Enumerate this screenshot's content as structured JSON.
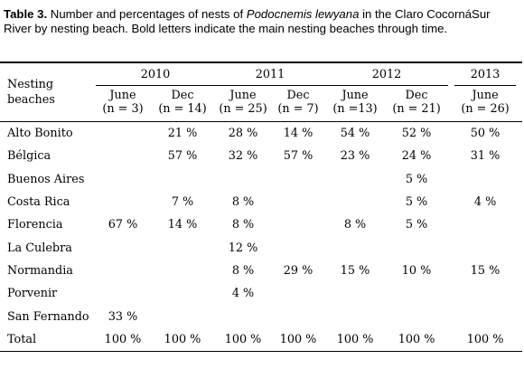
{
  "caption": {
    "label": "Table 3.",
    "text_before": " Number and percentages of nests of ",
    "species": "Podocnemis lewyana",
    "text_after": " in the Claro CocornáSur River by nesting beach. Bold letters indicate the main nesting beaches through time."
  },
  "header": {
    "first_col_line1": "Nesting",
    "first_col_line2": "beaches",
    "years": [
      "2010",
      "2011",
      "2012",
      "2013"
    ],
    "sub": [
      {
        "month": "June",
        "n": "(n = 3)"
      },
      {
        "month": "Dec",
        "n": "(n = 14)"
      },
      {
        "month": "June",
        "n": "(n = 25)"
      },
      {
        "month": "Dec",
        "n": "(n = 7)"
      },
      {
        "month": "June",
        "n": "(n =13)"
      },
      {
        "month": "Dec",
        "n": "(n = 21)"
      },
      {
        "month": "June",
        "n": "(n = 26)"
      }
    ]
  },
  "rows": [
    {
      "name": "Alto Bonito",
      "v": [
        "",
        "21 %",
        "28 %",
        "14 %",
        "54 %",
        "52 %",
        "50 %"
      ]
    },
    {
      "name": "Bélgica",
      "v": [
        "",
        "57 %",
        "32 %",
        "57 %",
        "23 %",
        "24 %",
        "31 %"
      ]
    },
    {
      "name": "Buenos Aires",
      "v": [
        "",
        "",
        "",
        "",
        "",
        "5 %",
        ""
      ]
    },
    {
      "name": "Costa Rica",
      "v": [
        "",
        "7 %",
        "8 %",
        "",
        "",
        "5 %",
        "4 %"
      ]
    },
    {
      "name": "Florencia",
      "v": [
        "67 %",
        "14 %",
        "8 %",
        "",
        "8 %",
        "5 %",
        ""
      ]
    },
    {
      "name": "La Culebra",
      "v": [
        "",
        "",
        "12 %",
        "",
        "",
        "",
        ""
      ]
    },
    {
      "name": "Normandia",
      "v": [
        "",
        "",
        "8 %",
        "29 %",
        "15 %",
        "10 %",
        "15 %"
      ]
    },
    {
      "name": "Porvenir",
      "v": [
        "",
        "",
        "4 %",
        "",
        "",
        "",
        ""
      ]
    },
    {
      "name": "San Fernando",
      "v": [
        "33 %",
        "",
        "",
        "",
        "",
        "",
        ""
      ]
    },
    {
      "name": "Total",
      "v": [
        "100 %",
        "100 %",
        "100 %",
        "100 %",
        "100 %",
        "100 %",
        "100 %"
      ]
    }
  ]
}
